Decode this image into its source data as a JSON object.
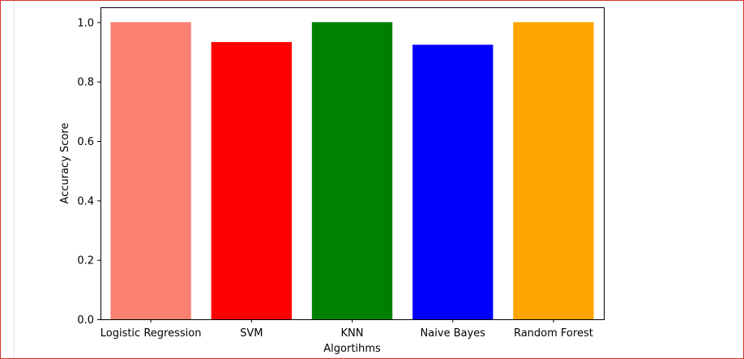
{
  "chart_data": {
    "type": "bar",
    "categories": [
      "Logistic Regression",
      "SVM",
      "KNN",
      "Naive Bayes",
      "Random Forest"
    ],
    "values": [
      1.0,
      0.933,
      1.0,
      0.924,
      1.0
    ],
    "colors": [
      "#fa8072",
      "#ff0000",
      "#008000",
      "#0000ff",
      "#ffa500"
    ],
    "title": "",
    "xlabel": "Algortihms",
    "ylabel": "Accuracy Score",
    "ylim": [
      0,
      1.05
    ],
    "yticks": [
      "0.0",
      "0.2",
      "0.4",
      "0.6",
      "0.8",
      "1.0"
    ],
    "grid": false,
    "legend": "none"
  }
}
